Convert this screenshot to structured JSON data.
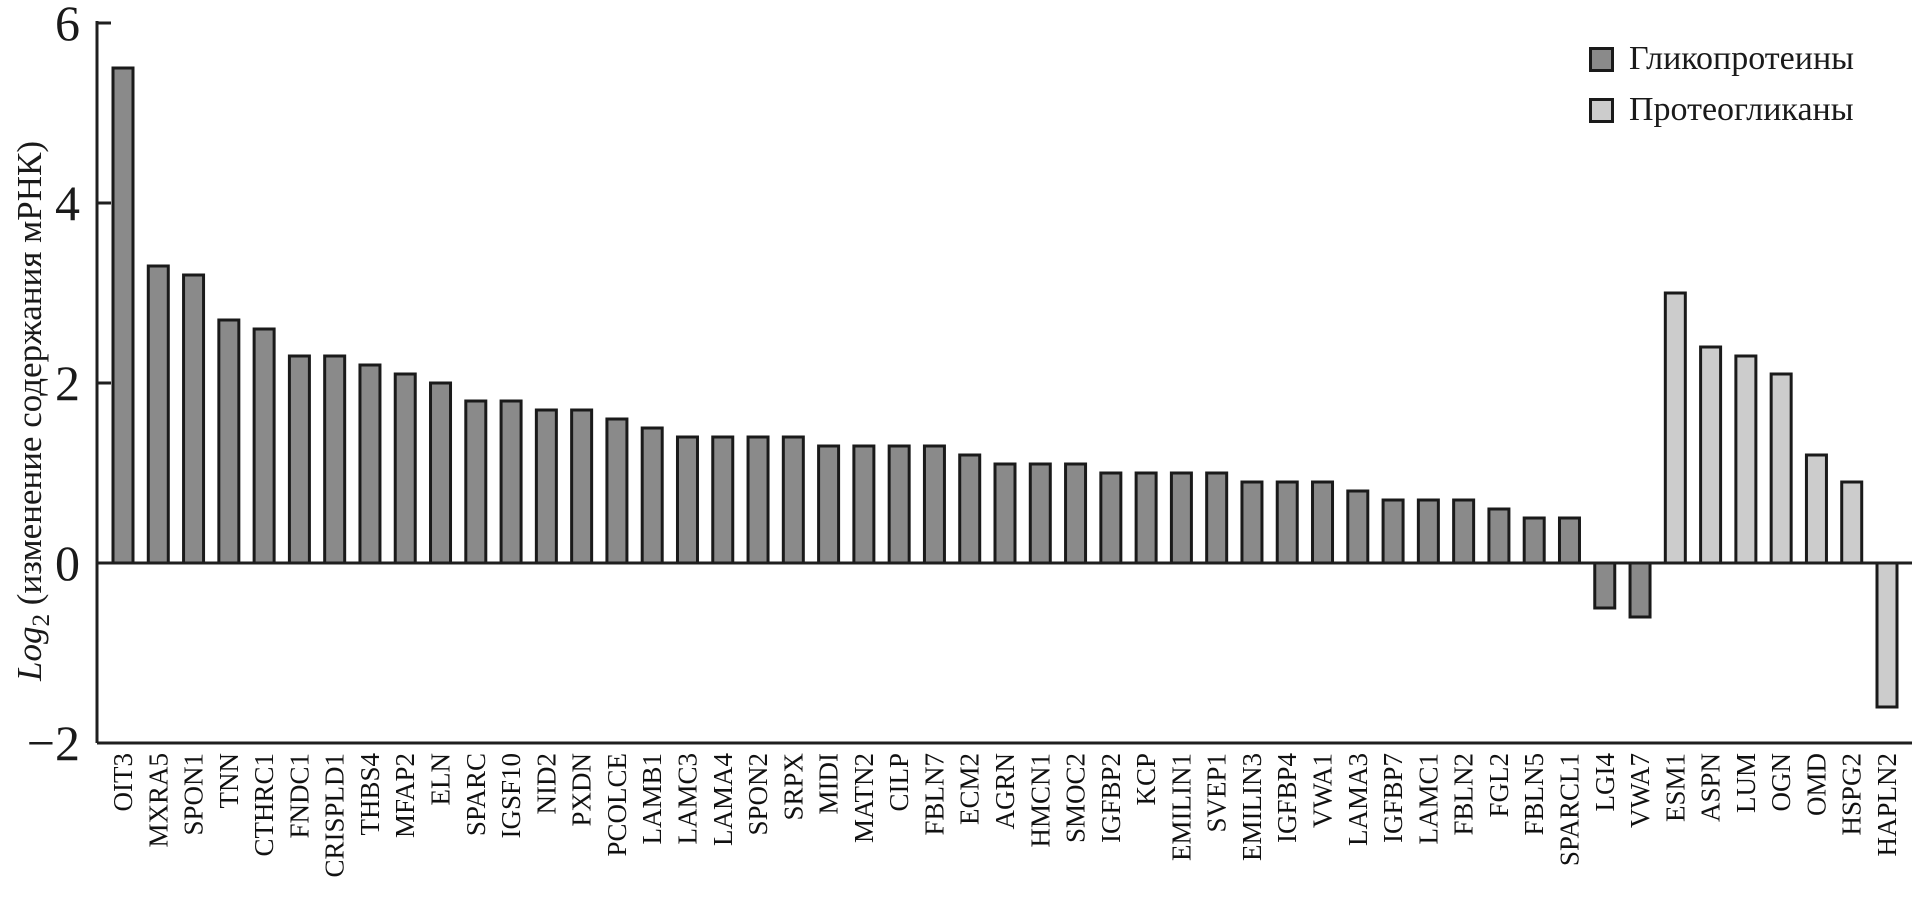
{
  "figure": {
    "y_axis_title": {
      "prefix_italic": "Log",
      "subscript": "2",
      "rest": " (изменение содержания мРНК)"
    },
    "legend": [
      {
        "key": "glycoproteins",
        "label": "Гликопротеины",
        "color": "#8a8a8a"
      },
      {
        "key": "proteoglycans",
        "label": "Протеогликаны",
        "color": "#cccccc"
      }
    ]
  },
  "chart_data": {
    "type": "bar",
    "title": "",
    "xlabel": "",
    "ylabel": "Log2 (изменение содержания мРНК)",
    "ylim": [
      -2,
      6
    ],
    "yticks": [
      6,
      4,
      2,
      0,
      -2
    ],
    "grid": false,
    "legend_position": "top-right",
    "axis_color": "#1f1f1f",
    "bar_outline_color": "#1a1a1a",
    "series": [
      {
        "name": "Гликопротеины",
        "color": "#8a8a8a",
        "categories": [
          "OIT3",
          "MXRA5",
          "SPON1",
          "TNN",
          "CTHRC1",
          "FNDC1",
          "CRISPLD1",
          "THBS4",
          "MFAP2",
          "ELN",
          "SPARC",
          "IGSF10",
          "NID2",
          "PXDN",
          "PCOLCE",
          "LAMB1",
          "LAMC3",
          "LAMA4",
          "SPON2",
          "SRPX",
          "MIDI",
          "MATN2",
          "CILP",
          "FBLN7",
          "ECM2",
          "AGRN",
          "HMCN1",
          "SMOC2",
          "IGFBP2",
          "KCP",
          "EMILIN1",
          "SVEP1",
          "EMILIN3",
          "IGFBP4",
          "VWA1",
          "LAMA3",
          "IGFBP7",
          "LAMC1",
          "FBLN2",
          "FGL2",
          "FBLN5",
          "SPARCL1",
          "LGI4",
          "VWA7"
        ],
        "values": [
          5.5,
          3.3,
          3.2,
          2.7,
          2.6,
          2.3,
          2.3,
          2.2,
          2.1,
          2.0,
          1.8,
          1.8,
          1.7,
          1.7,
          1.6,
          1.5,
          1.4,
          1.4,
          1.4,
          1.4,
          1.3,
          1.3,
          1.3,
          1.3,
          1.2,
          1.1,
          1.1,
          1.1,
          1.0,
          1.0,
          1.0,
          1.0,
          0.9,
          0.9,
          0.9,
          0.8,
          0.7,
          0.7,
          0.7,
          0.6,
          0.5,
          0.5,
          -0.5,
          -0.6
        ]
      },
      {
        "name": "Протеогликаны",
        "color": "#cccccc",
        "categories": [
          "ESM1",
          "ASPN",
          "LUM",
          "OGN",
          "OMD",
          "HSPG2",
          "HAPLN2"
        ],
        "values": [
          3.0,
          2.4,
          2.3,
          2.1,
          1.2,
          0.9,
          -1.6
        ]
      }
    ]
  }
}
